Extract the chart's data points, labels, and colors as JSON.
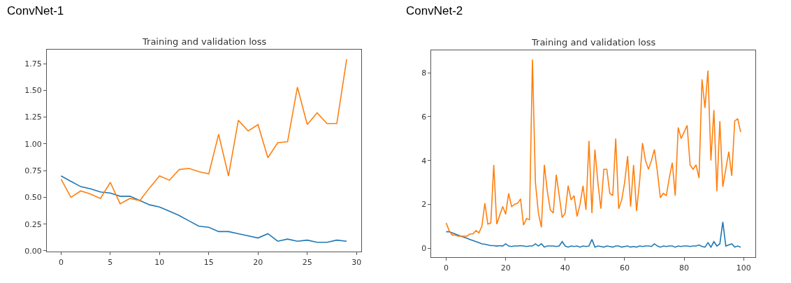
{
  "chart_data": [
    {
      "type": "line",
      "title": "ConvNet-1",
      "subtitle": "Training and validation loss",
      "x": [
        0,
        1,
        2,
        3,
        4,
        5,
        6,
        7,
        8,
        9,
        10,
        11,
        12,
        13,
        14,
        15,
        16,
        17,
        18,
        19,
        20,
        21,
        22,
        23,
        24,
        25,
        26,
        27,
        28,
        29
      ],
      "series": [
        {
          "color": "#1f77b4",
          "values": [
            0.7,
            0.65,
            0.6,
            0.58,
            0.55,
            0.54,
            0.51,
            0.51,
            0.47,
            0.43,
            0.41,
            0.37,
            0.33,
            0.28,
            0.23,
            0.22,
            0.18,
            0.18,
            0.16,
            0.14,
            0.12,
            0.16,
            0.09,
            0.11,
            0.09,
            0.1,
            0.08,
            0.08,
            0.1,
            0.09
          ]
        },
        {
          "color": "#ff7f0e",
          "values": [
            0.67,
            0.5,
            0.56,
            0.53,
            0.49,
            0.64,
            0.44,
            0.49,
            0.47,
            0.59,
            0.7,
            0.66,
            0.76,
            0.77,
            0.74,
            0.72,
            1.09,
            0.7,
            1.22,
            1.12,
            1.18,
            0.87,
            1.01,
            1.02,
            1.53,
            1.18,
            1.29,
            1.19,
            1.19,
            1.79
          ]
        }
      ],
      "xlim": [
        -1.45,
        30.45
      ],
      "xticks": [
        0,
        5,
        10,
        15,
        20,
        25,
        30
      ],
      "ylim": [
        -0.01,
        1.88
      ],
      "yticks": [
        {
          "value": 0,
          "label": "0.00"
        },
        {
          "value": 0.25,
          "label": "0.25"
        },
        {
          "value": 0.5,
          "label": "0.50"
        },
        {
          "value": 0.75,
          "label": "0.75"
        },
        {
          "value": 1,
          "label": "1.00"
        },
        {
          "value": 1.25,
          "label": "1.25"
        },
        {
          "value": 1.5,
          "label": "1.50"
        },
        {
          "value": 1.75,
          "label": "1.75"
        }
      ],
      "marker": "none",
      "line_style": "solid"
    },
    {
      "type": "line",
      "title": "ConvNet-2",
      "subtitle": "Training and validation loss",
      "x": [
        0,
        1,
        2,
        3,
        4,
        5,
        6,
        7,
        8,
        9,
        10,
        11,
        12,
        13,
        14,
        15,
        16,
        17,
        18,
        19,
        20,
        21,
        22,
        23,
        24,
        25,
        26,
        27,
        28,
        29,
        30,
        31,
        32,
        33,
        34,
        35,
        36,
        37,
        38,
        39,
        40,
        41,
        42,
        43,
        44,
        45,
        46,
        47,
        48,
        49,
        50,
        51,
        52,
        53,
        54,
        55,
        56,
        57,
        58,
        59,
        60,
        61,
        62,
        63,
        64,
        65,
        66,
        67,
        68,
        69,
        70,
        71,
        72,
        73,
        74,
        75,
        76,
        77,
        78,
        79,
        80,
        81,
        82,
        83,
        84,
        85,
        86,
        87,
        88,
        89,
        90,
        91,
        92,
        93,
        94,
        95,
        96,
        97,
        98,
        99
      ],
      "series": [
        {
          "color": "#1f77b4",
          "values": [
            0.75,
            0.75,
            0.7,
            0.65,
            0.6,
            0.55,
            0.5,
            0.45,
            0.4,
            0.35,
            0.3,
            0.25,
            0.2,
            0.18,
            0.15,
            0.12,
            0.12,
            0.1,
            0.12,
            0.1,
            0.2,
            0.1,
            0.08,
            0.1,
            0.1,
            0.12,
            0.1,
            0.08,
            0.1,
            0.1,
            0.2,
            0.1,
            0.2,
            0.05,
            0.1,
            0.1,
            0.1,
            0.08,
            0.1,
            0.3,
            0.1,
            0.05,
            0.1,
            0.08,
            0.1,
            0.05,
            0.1,
            0.08,
            0.1,
            0.4,
            0.05,
            0.1,
            0.08,
            0.05,
            0.1,
            0.08,
            0.05,
            0.1,
            0.1,
            0.05,
            0.08,
            0.1,
            0.05,
            0.08,
            0.05,
            0.1,
            0.08,
            0.1,
            0.1,
            0.08,
            0.2,
            0.1,
            0.05,
            0.1,
            0.08,
            0.1,
            0.1,
            0.05,
            0.1,
            0.08,
            0.1,
            0.1,
            0.08,
            0.1,
            0.1,
            0.15,
            0.08,
            0.05,
            0.25,
            0.05,
            0.3,
            0.1,
            0.2,
            1.2,
            0.1,
            0.15,
            0.2,
            0.05,
            0.1,
            0.05
          ]
        },
        {
          "color": "#ff7f0e",
          "values": [
            1.15,
            0.8,
            0.6,
            0.6,
            0.55,
            0.55,
            0.55,
            0.55,
            0.65,
            0.65,
            0.8,
            0.7,
            1.0,
            2.05,
            1.1,
            1.15,
            3.8,
            1.1,
            1.5,
            1.9,
            1.55,
            2.5,
            1.9,
            2.0,
            2.05,
            2.25,
            1.05,
            1.35,
            1.3,
            8.6,
            3.0,
            1.6,
            0.95,
            3.8,
            2.6,
            1.75,
            1.6,
            3.35,
            2.4,
            1.4,
            1.6,
            2.85,
            2.2,
            2.4,
            1.45,
            2.0,
            2.85,
            1.75,
            4.9,
            1.6,
            4.5,
            3.0,
            1.8,
            3.6,
            3.6,
            2.5,
            2.4,
            5.0,
            1.8,
            2.2,
            3.0,
            4.2,
            1.9,
            3.8,
            1.7,
            3.0,
            4.8,
            4.0,
            3.6,
            4.0,
            4.5,
            3.5,
            2.3,
            2.5,
            2.4,
            3.2,
            3.9,
            2.4,
            5.5,
            5.0,
            5.3,
            5.6,
            3.8,
            3.6,
            3.8,
            3.2,
            7.7,
            6.4,
            8.1,
            4.0,
            6.3,
            2.6,
            5.8,
            2.8,
            3.6,
            4.4,
            3.3,
            5.8,
            5.9,
            5.3
          ]
        }
      ],
      "xlim": [
        -4.95,
        103.95
      ],
      "xticks": [
        0,
        20,
        40,
        60,
        80,
        100
      ],
      "ylim": [
        -0.42,
        9.02
      ],
      "yticks": [
        0,
        2,
        4,
        6,
        8
      ],
      "marker": "none",
      "line_style": "solid"
    }
  ]
}
